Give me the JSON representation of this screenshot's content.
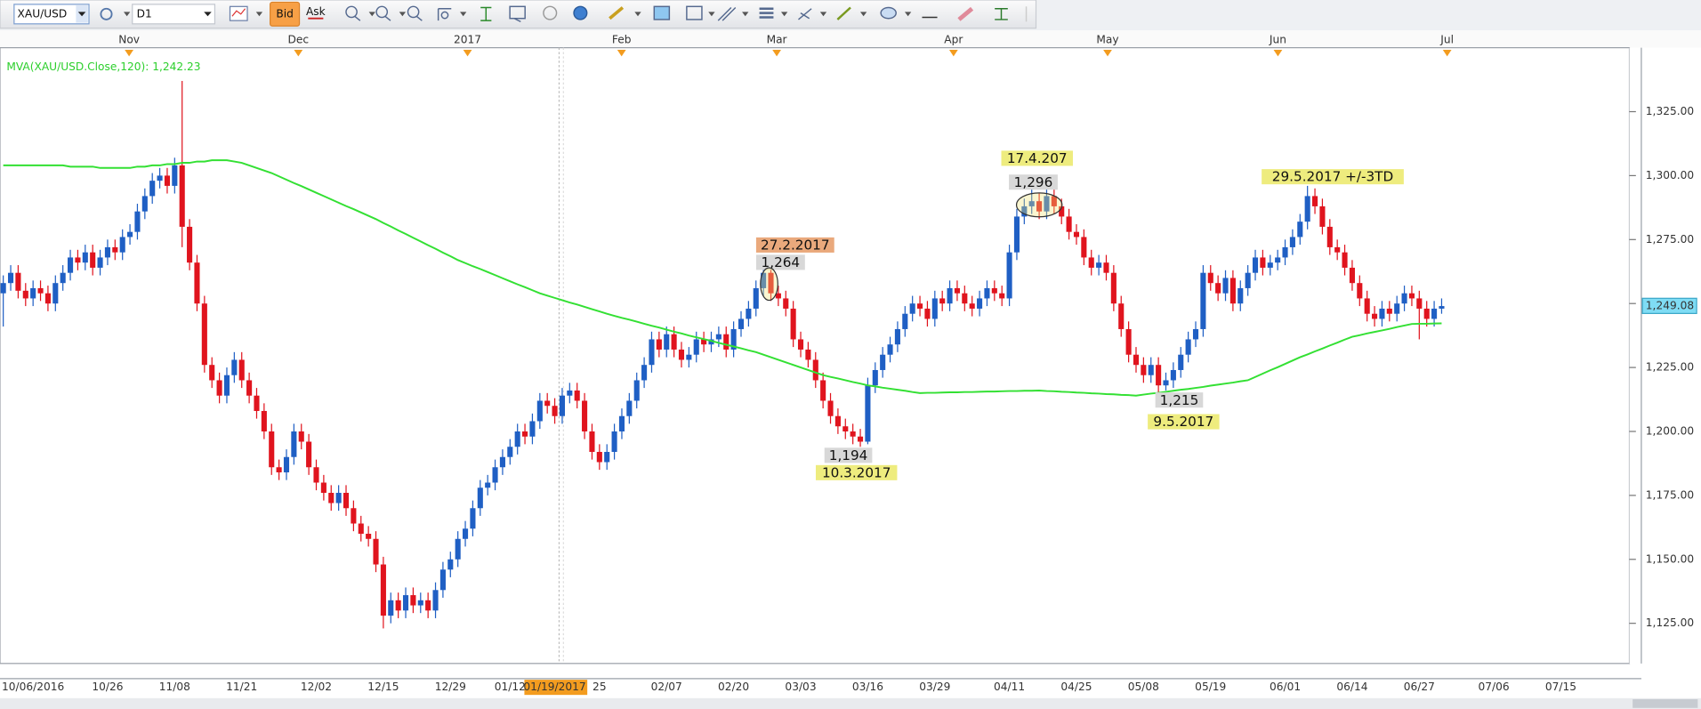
{
  "toolbar": {
    "symbol": "XAU/USD",
    "timeframe": "D1",
    "bid": "Bid",
    "ask": "Ask"
  },
  "chart_data": {
    "type": "candlestick",
    "categories": [
      null,
      null,
      null,
      null,
      "10/06/2016",
      null,
      null,
      null,
      null,
      null,
      null,
      null,
      null,
      null,
      "10/26",
      null,
      null,
      null,
      null,
      null,
      null,
      null,
      null,
      "11/08",
      null,
      null,
      null,
      null,
      null,
      null,
      null,
      null,
      "11/21",
      null,
      null,
      null,
      null,
      null,
      null,
      null,
      null,
      null,
      "12/02",
      null,
      null,
      null,
      null,
      null,
      null,
      null,
      null,
      "12/15",
      null,
      null,
      null,
      null,
      null,
      null,
      null,
      null,
      "12/29",
      null,
      null,
      null,
      null,
      null,
      null,
      null,
      "01/12",
      null,
      null,
      null,
      null,
      null,
      "01/19/2017",
      null,
      null,
      null,
      null,
      null,
      "25",
      null,
      null,
      null,
      null,
      null,
      null,
      null,
      null,
      "02/07",
      null,
      null,
      null,
      null,
      null,
      null,
      null,
      null,
      "02/20",
      null,
      null,
      null,
      null,
      null,
      null,
      null,
      null,
      "03/03",
      null,
      null,
      null,
      null,
      null,
      null,
      null,
      null,
      "03/16",
      null,
      null,
      null,
      null,
      null,
      null,
      null,
      null,
      "03/29",
      null,
      null,
      null,
      null,
      null,
      null,
      null,
      null,
      null,
      "04/11",
      null,
      null,
      null,
      null,
      null,
      null,
      null,
      null,
      "04/25",
      null,
      null,
      null,
      null,
      null,
      null,
      null,
      null,
      "05/08",
      null,
      null,
      null,
      null,
      null,
      null,
      null,
      null,
      "05/19",
      null,
      null,
      null,
      null,
      null,
      null,
      null,
      null,
      null,
      "06/01",
      null,
      null,
      null,
      null,
      null,
      null,
      null,
      null,
      "06/14",
      null,
      null,
      null,
      null,
      null,
      null,
      null,
      null,
      "06/27",
      null,
      null,
      null,
      null,
      null,
      null,
      null,
      null,
      null,
      "07/06",
      null,
      null,
      null,
      null,
      null,
      null,
      null,
      null,
      "07/15"
    ],
    "open": [
      1254,
      1258,
      1262,
      1255,
      1252,
      1256,
      1254,
      1250,
      1258,
      1262,
      1268,
      1266,
      1270,
      1264,
      1268,
      1272,
      1270,
      1276,
      1278,
      1286,
      1292,
      1298,
      1300,
      1296,
      1304,
      1280,
      1266,
      1250,
      1226,
      1220,
      1214,
      1222,
      1228,
      1220,
      1214,
      1208,
      1200,
      1186,
      1184,
      1190,
      1200,
      1196,
      1186,
      1180,
      1176,
      1172,
      1176,
      1170,
      1164,
      1160,
      1158,
      1148,
      1128,
      1134,
      1130,
      1136,
      1132,
      1134,
      1130,
      1138,
      1146,
      1150,
      1158,
      1162,
      1170,
      1178,
      1180,
      1186,
      1190,
      1194,
      1200,
      1198,
      1204,
      1212,
      1210,
      1206,
      1214,
      1216,
      1212,
      1200,
      1192,
      1188,
      1192,
      1200,
      1206,
      1212,
      1220,
      1226,
      1236,
      1232,
      1238,
      1232,
      1228,
      1230,
      1236,
      1234,
      1236,
      1238,
      1232,
      1240,
      1244,
      1248,
      1256,
      1262,
      1254,
      1252,
      1248,
      1236,
      1232,
      1228,
      1220,
      1212,
      1206,
      1202,
      1200,
      1198,
      1196,
      1218,
      1224,
      1230,
      1234,
      1240,
      1246,
      1250,
      1248,
      1244,
      1252,
      1250,
      1256,
      1254,
      1250,
      1248,
      1252,
      1256,
      1254,
      1252,
      1270,
      1284,
      1288,
      1290,
      1286,
      1292,
      1288,
      1284,
      1278,
      1276,
      1268,
      1264,
      1266,
      1262,
      1250,
      1240,
      1230,
      1226,
      1222,
      1226,
      1218,
      1220,
      1224,
      1230,
      1236,
      1240,
      1262,
      1258,
      1254,
      1260,
      1250,
      1256,
      1262,
      1268,
      1264,
      1266,
      1268,
      1272,
      1276,
      1282,
      1292,
      1288,
      1280,
      1272,
      1270,
      1264,
      1258,
      1252,
      1246,
      1244,
      1248,
      1246,
      1250,
      1254,
      1252,
      1248,
      1244,
      1248,
      null,
      null,
      null,
      null,
      null,
      null,
      null,
      null,
      null,
      null,
      null,
      null,
      null,
      null,
      null,
      null
    ],
    "high": [
      1261,
      1265,
      1265,
      1258,
      1259,
      1259,
      1257,
      1261,
      1265,
      1271,
      1271,
      1273,
      1273,
      1271,
      1275,
      1275,
      1279,
      1281,
      1289,
      1295,
      1301,
      1303,
      1303,
      1307,
      1337,
      1283,
      1269,
      1253,
      1229,
      1223,
      1225,
      1231,
      1231,
      1223,
      1217,
      1211,
      1203,
      1189,
      1193,
      1203,
      1203,
      1199,
      1189,
      1183,
      1179,
      1179,
      1179,
      1173,
      1167,
      1163,
      1161,
      1151,
      1137,
      1137,
      1139,
      1139,
      1137,
      1137,
      1141,
      1149,
      1153,
      1161,
      1165,
      1173,
      1181,
      1183,
      1189,
      1193,
      1197,
      1203,
      1203,
      1207,
      1215,
      1215,
      1213,
      1217,
      1219,
      1219,
      1215,
      1203,
      1195,
      1195,
      1203,
      1209,
      1215,
      1223,
      1229,
      1239,
      1239,
      1241,
      1241,
      1235,
      1233,
      1239,
      1239,
      1239,
      1241,
      1241,
      1243,
      1247,
      1251,
      1259,
      1264,
      1265,
      1257,
      1255,
      1251,
      1239,
      1235,
      1231,
      1223,
      1215,
      1209,
      1205,
      1203,
      1201,
      1221,
      1227,
      1233,
      1237,
      1243,
      1249,
      1253,
      1253,
      1251,
      1255,
      1255,
      1259,
      1259,
      1257,
      1253,
      1255,
      1259,
      1259,
      1257,
      1273,
      1287,
      1291,
      1296,
      1293,
      1295,
      1295,
      1291,
      1287,
      1281,
      1279,
      1271,
      1269,
      1269,
      1265,
      1253,
      1243,
      1233,
      1229,
      1229,
      1229,
      1223,
      1227,
      1233,
      1239,
      1243,
      1265,
      1265,
      1261,
      1263,
      1263,
      1259,
      1265,
      1271,
      1271,
      1269,
      1271,
      1275,
      1279,
      1285,
      1296,
      1295,
      1291,
      1283,
      1275,
      1273,
      1267,
      1261,
      1255,
      1249,
      1251,
      1251,
      1253,
      1257,
      1257,
      1255,
      1251,
      1251,
      1252,
      null,
      null,
      null,
      null,
      null,
      null,
      null,
      null,
      null,
      null,
      null,
      null,
      null,
      null,
      null,
      null
    ],
    "low": [
      1241,
      1255,
      1252,
      1249,
      1249,
      1251,
      1247,
      1247,
      1255,
      1259,
      1263,
      1263,
      1261,
      1261,
      1265,
      1267,
      1267,
      1273,
      1275,
      1283,
      1289,
      1295,
      1293,
      1293,
      1272,
      1263,
      1247,
      1223,
      1217,
      1211,
      1211,
      1219,
      1217,
      1211,
      1205,
      1197,
      1183,
      1181,
      1181,
      1187,
      1193,
      1183,
      1177,
      1173,
      1169,
      1169,
      1167,
      1161,
      1157,
      1155,
      1145,
      1123,
      1125,
      1127,
      1127,
      1129,
      1129,
      1127,
      1127,
      1135,
      1143,
      1147,
      1155,
      1159,
      1167,
      1175,
      1177,
      1183,
      1187,
      1191,
      1195,
      1195,
      1201,
      1207,
      1203,
      1203,
      1211,
      1209,
      1197,
      1189,
      1185,
      1185,
      1189,
      1197,
      1203,
      1209,
      1217,
      1223,
      1229,
      1229,
      1229,
      1225,
      1225,
      1227,
      1231,
      1231,
      1233,
      1229,
      1229,
      1237,
      1241,
      1245,
      1253,
      1251,
      1249,
      1245,
      1233,
      1229,
      1225,
      1217,
      1209,
      1203,
      1199,
      1197,
      1195,
      1194,
      1195,
      1215,
      1221,
      1227,
      1231,
      1237,
      1243,
      1245,
      1241,
      1241,
      1247,
      1247,
      1251,
      1247,
      1245,
      1245,
      1249,
      1251,
      1249,
      1249,
      1267,
      1281,
      1285,
      1283,
      1283,
      1285,
      1281,
      1275,
      1273,
      1265,
      1261,
      1261,
      1259,
      1247,
      1237,
      1227,
      1223,
      1219,
      1219,
      1215,
      1216,
      1217,
      1221,
      1227,
      1233,
      1237,
      1255,
      1251,
      1251,
      1247,
      1247,
      1253,
      1259,
      1261,
      1261,
      1263,
      1265,
      1269,
      1273,
      1279,
      1285,
      1277,
      1269,
      1267,
      1261,
      1255,
      1249,
      1243,
      1241,
      1241,
      1243,
      1243,
      1247,
      1249,
      1236,
      1241,
      1241,
      1246,
      null,
      null,
      null,
      null,
      null,
      null,
      null,
      null,
      null,
      null,
      null,
      null,
      null,
      null,
      null,
      null
    ],
    "close": [
      1258,
      1262,
      1255,
      1252,
      1256,
      1254,
      1250,
      1258,
      1262,
      1268,
      1266,
      1270,
      1264,
      1268,
      1272,
      1270,
      1276,
      1278,
      1286,
      1292,
      1298,
      1300,
      1296,
      1304,
      1280,
      1266,
      1250,
      1226,
      1220,
      1214,
      1222,
      1228,
      1220,
      1214,
      1208,
      1200,
      1186,
      1184,
      1190,
      1200,
      1196,
      1186,
      1180,
      1176,
      1172,
      1176,
      1170,
      1164,
      1160,
      1158,
      1148,
      1128,
      1134,
      1130,
      1136,
      1132,
      1134,
      1130,
      1138,
      1146,
      1150,
      1158,
      1162,
      1170,
      1178,
      1180,
      1186,
      1190,
      1194,
      1200,
      1198,
      1204,
      1212,
      1210,
      1206,
      1214,
      1216,
      1212,
      1200,
      1192,
      1188,
      1192,
      1200,
      1206,
      1212,
      1220,
      1226,
      1236,
      1232,
      1238,
      1232,
      1228,
      1230,
      1236,
      1234,
      1236,
      1238,
      1232,
      1240,
      1244,
      1248,
      1256,
      1262,
      1254,
      1252,
      1248,
      1236,
      1232,
      1228,
      1220,
      1212,
      1206,
      1202,
      1200,
      1198,
      1196,
      1218,
      1224,
      1230,
      1234,
      1240,
      1246,
      1250,
      1248,
      1244,
      1252,
      1250,
      1256,
      1254,
      1250,
      1248,
      1252,
      1256,
      1254,
      1252,
      1270,
      1284,
      1288,
      1290,
      1286,
      1292,
      1288,
      1284,
      1278,
      1276,
      1268,
      1264,
      1266,
      1262,
      1250,
      1240,
      1230,
      1226,
      1222,
      1226,
      1218,
      1220,
      1224,
      1230,
      1236,
      1240,
      1262,
      1258,
      1254,
      1260,
      1250,
      1256,
      1262,
      1268,
      1264,
      1266,
      1268,
      1272,
      1276,
      1282,
      1292,
      1288,
      1280,
      1272,
      1270,
      1264,
      1258,
      1252,
      1246,
      1244,
      1248,
      1246,
      1250,
      1254,
      1252,
      1248,
      1244,
      1248,
      1249,
      null,
      null,
      null,
      null,
      null,
      null,
      null,
      null,
      null,
      null,
      null,
      null,
      null,
      null,
      null,
      null
    ],
    "up_color": "#1f5fc4",
    "down_color": "#e0141e",
    "ma": {
      "name": "MVA(XAU/USD.Close,120): 1,242.23",
      "color": "#33e033",
      "values": [
        1304,
        1304,
        1304,
        1304,
        1304,
        1304,
        1304,
        1304,
        1304,
        1303.5,
        1303.5,
        1303.5,
        1303.5,
        1303,
        1303,
        1303,
        1303,
        1303,
        1303.5,
        1303.5,
        1304,
        1304,
        1304.5,
        1304.5,
        1305,
        1305,
        1305.5,
        1305.5,
        1306,
        1306,
        1306,
        1305.5,
        1305,
        1304,
        1303,
        1302,
        1301,
        1299.7,
        1298.4,
        1297.1,
        1295.9,
        1294.6,
        1293.3,
        1292,
        1290.7,
        1289.4,
        1288.1,
        1286.9,
        1285.6,
        1284.3,
        1283,
        1281.5,
        1280.1,
        1278.6,
        1277.2,
        1275.7,
        1274.3,
        1272.8,
        1271.4,
        1269.9,
        1268.5,
        1267,
        1265.8,
        1264.6,
        1263.5,
        1262.3,
        1261.1,
        1259.9,
        1258.7,
        1257.5,
        1256.4,
        1255.2,
        1254,
        1253.1,
        1252.2,
        1251.3,
        1250.4,
        1249.6,
        1248.7,
        1247.8,
        1246.9,
        1246,
        1245.2,
        1244.4,
        1243.7,
        1242.9,
        1242.1,
        1241.3,
        1240.6,
        1239.8,
        1239,
        1238.3,
        1237.5,
        1236.8,
        1236.1,
        1235.4,
        1234.6,
        1233.9,
        1233.2,
        1232.5,
        1231.7,
        1231,
        1230,
        1229,
        1228,
        1227,
        1226,
        1225,
        1224,
        1223,
        1222,
        1221.3,
        1220.7,
        1220,
        1219.3,
        1218.7,
        1218,
        1217.6,
        1217.1,
        1216.7,
        1216.3,
        1215.9,
        1215.4,
        1215,
        1215.1,
        1215.1,
        1215.2,
        1215.3,
        1215.3,
        1215.4,
        1215.4,
        1215.5,
        1215.6,
        1215.6,
        1215.7,
        1215.8,
        1215.8,
        1215.9,
        1215.9,
        1216,
        1215.8,
        1215.7,
        1215.5,
        1215.4,
        1215.2,
        1215.1,
        1214.9,
        1214.8,
        1214.6,
        1214.5,
        1214.3,
        1214.2,
        1214,
        1214.4,
        1214.8,
        1215.1,
        1215.5,
        1215.9,
        1216.3,
        1216.6,
        1217,
        1217.4,
        1217.9,
        1218.3,
        1218.7,
        1219.1,
        1219.6,
        1220,
        1221.3,
        1222.6,
        1223.9,
        1225.1,
        1226.4,
        1227.7,
        1229,
        1230.1,
        1231.3,
        1232.4,
        1233.6,
        1234.7,
        1235.9,
        1237,
        1237.6,
        1238.3,
        1238.9,
        1239.5,
        1240.1,
        1240.8,
        1241.4,
        1242,
        1242.1,
        1242.1,
        1242.2,
        1242.23,
        null,
        null,
        null,
        null,
        null,
        null,
        null,
        null,
        null,
        null,
        null,
        null,
        null,
        null,
        null,
        null
      ]
    },
    "ylim": [
      1109.3,
      1350
    ],
    "yticks": [
      {
        "value": 1125,
        "label": "1,125.00"
      },
      {
        "value": 1150,
        "label": "1,150.00"
      },
      {
        "value": 1175,
        "label": "1,175.00"
      },
      {
        "value": 1200,
        "label": "1,200.00"
      },
      {
        "value": 1225,
        "label": "1,225.00"
      },
      {
        "value": 1250,
        "label": "1,250.00"
      },
      {
        "value": 1275,
        "label": "1,275.00"
      },
      {
        "value": 1300,
        "label": "1,300.00"
      },
      {
        "value": 1325,
        "label": "1,325.00"
      }
    ],
    "last_price": {
      "value": 1249.08,
      "label": "1,249.08"
    },
    "months": [
      "Nov",
      "Dec",
      "2017",
      "Feb",
      "Mar",
      "Apr",
      "May",
      "Jun",
      "Jul"
    ],
    "annotations": [
      {
        "text": "27.2.2017",
        "color": "#eaa97c"
      },
      {
        "text": "1,264",
        "color": "#d8d8d8"
      },
      {
        "text": "17.4.207",
        "color": "#eeec7e"
      },
      {
        "text": "1,296",
        "color": "#d8d8d8"
      },
      {
        "text": "29.5.2017 +/-3TD",
        "color": "#eeec7e"
      },
      {
        "text": "1,194",
        "color": "#d8d8d8"
      },
      {
        "text": "10.3.2017",
        "color": "#eeec7e"
      },
      {
        "text": "1,215",
        "color": "#d8d8d8"
      },
      {
        "text": "9.5.2017",
        "color": "#eeec7e"
      }
    ]
  }
}
